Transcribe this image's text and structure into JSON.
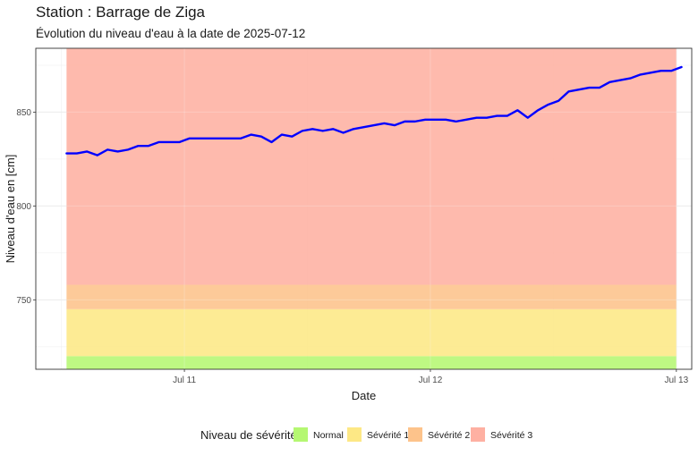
{
  "header": {
    "title": "Station : Barrage de Ziga",
    "subtitle": "Évolution du niveau d'eau à la date de 2025-07-12"
  },
  "chart_data": {
    "type": "line",
    "title": "Station : Barrage de Ziga",
    "subtitle": "Évolution du niveau d'eau à la date de 2025-07-12",
    "xlabel": "Date",
    "ylabel": "Niveau d'eau en [cm]",
    "x_ticks": [
      {
        "label": "Jul 11",
        "t": 0
      },
      {
        "label": "Jul 12",
        "t": 24
      },
      {
        "label": "Jul 13",
        "t": 48
      }
    ],
    "y_ticks": [
      750,
      800,
      850
    ],
    "xlim_hours_from_jul11": [
      -14.5,
      49.5
    ],
    "ylim": [
      713,
      884
    ],
    "grid": true,
    "bands": [
      {
        "name": "Normal",
        "from": 713,
        "to": 720,
        "color": "#b5f772"
      },
      {
        "name": "Sévérité 1",
        "from": 720,
        "to": 745,
        "color": "#fde885"
      },
      {
        "name": "Sévérité 2",
        "from": 745,
        "to": 758,
        "color": "#fdc38b"
      },
      {
        "name": "Sévérité 3",
        "from": 758,
        "to": 884,
        "color": "#feb0a2"
      }
    ],
    "band_x_hours_from_jul11": [
      -11.5,
      48
    ],
    "series": [
      {
        "color": "#0000ff",
        "x_hours_from_jul11": [
          -11.5,
          -10.5,
          -9.5,
          -8.5,
          -7.5,
          -6.5,
          -5.5,
          -4.5,
          -3.5,
          -2.5,
          -1.5,
          -0.5,
          0.5,
          1.5,
          2.5,
          3.5,
          4.5,
          5.5,
          6.5,
          7.5,
          8.5,
          9.5,
          10.5,
          11.5,
          12.5,
          13.5,
          14.5,
          15.5,
          16.5,
          17.5,
          18.5,
          19.5,
          20.5,
          21.5,
          22.5,
          23.5,
          24.5,
          25.5,
          26.5,
          27.5,
          28.5,
          29.5,
          30.5,
          31.5,
          32.5,
          33.5,
          34.5,
          35.5,
          36.5,
          37.5,
          38.5,
          39.5,
          40.5,
          41.5,
          42.5,
          43.5,
          44.5,
          45.5,
          46.5,
          47.5,
          48.5
        ],
        "values": [
          828,
          828,
          829,
          827,
          830,
          829,
          830,
          832,
          832,
          834,
          834,
          834,
          836,
          836,
          836,
          836,
          836,
          836,
          838,
          837,
          834,
          838,
          837,
          840,
          841,
          840,
          841,
          839,
          841,
          842,
          843,
          844,
          843,
          845,
          845,
          846,
          846,
          846,
          845,
          846,
          847,
          847,
          848,
          848,
          851,
          847,
          851,
          854,
          856,
          861,
          862,
          863,
          863,
          866,
          867,
          868,
          870,
          871,
          872,
          872,
          874
        ]
      }
    ],
    "legend": {
      "title": "Niveau de sévérité",
      "position": "bottom",
      "items": [
        "Normal",
        "Sévérité 1",
        "Sévérité 2",
        "Sévérité 3"
      ]
    }
  }
}
